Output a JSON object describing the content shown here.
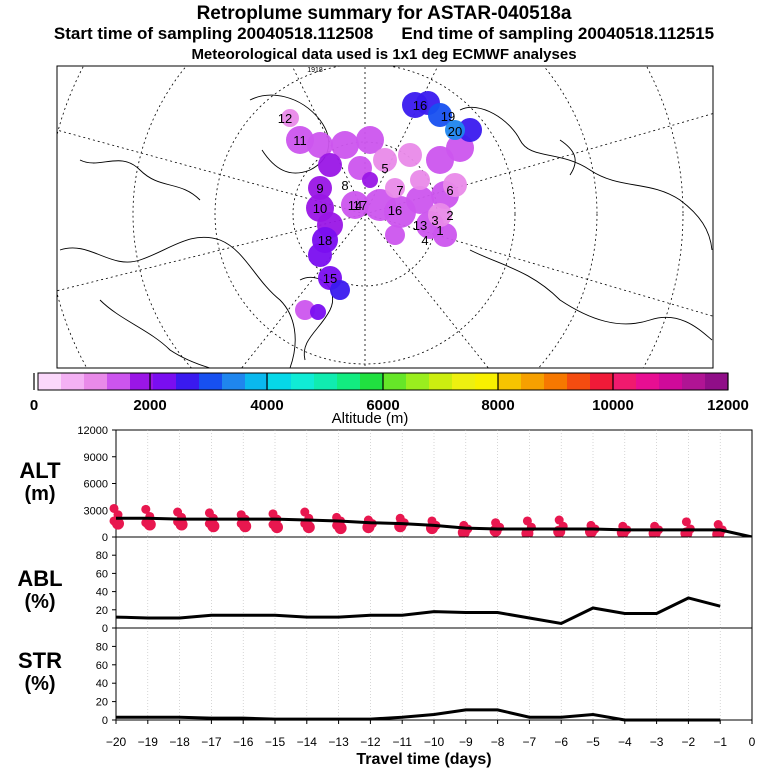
{
  "title": "Retroplume summary for ASTAR-040518a",
  "start_label": "Start time of sampling 20040518.112508",
  "end_label": "End time of sampling 20040518.112515",
  "met_label": "Meteorological data used is 1x1 deg ECMWF analyses",
  "colorbar": {
    "label": "Altitude (m)",
    "ticks": [
      "0",
      "2000",
      "4000",
      "6000",
      "8000",
      "10000",
      "12000"
    ],
    "colors": [
      "#fbd8fb",
      "#f4b1f4",
      "#e98ae9",
      "#cc55ee",
      "#9a16e6",
      "#7a0ef0",
      "#3a1aef",
      "#1750f0",
      "#1f86ee",
      "#0ab8ee",
      "#06d8e8",
      "#10ecd6",
      "#10ecb0",
      "#12ec80",
      "#20e040",
      "#66e628",
      "#9aee1e",
      "#ccee10",
      "#eef010",
      "#f8f000",
      "#f6c400",
      "#f6a000",
      "#f67800",
      "#f44c10",
      "#f01a38",
      "#f01a6e",
      "#e80e92",
      "#d00a9a",
      "#b01494",
      "#900e88"
    ]
  },
  "map": {
    "labels": [
      "1",
      "2",
      "3",
      "4",
      "5",
      "6",
      "7",
      "8",
      "9",
      "10",
      "11",
      "12",
      "13",
      "14",
      "15",
      "16",
      "17",
      "18",
      "19",
      "20"
    ],
    "corner_text": "1918"
  },
  "chart_data": [
    {
      "type": "line",
      "panel": "ALT",
      "title_line1": "ALT",
      "title_line2": "(m)",
      "ylabel": "ALT (m)",
      "ylim": [
        0,
        12000
      ],
      "yticks": [
        "12000",
        "9000",
        "6000",
        "3000",
        "0"
      ],
      "x": [
        -20,
        -19,
        -18,
        -17,
        -16,
        -15,
        -14,
        -13,
        -12,
        -11,
        -10,
        -9,
        -8,
        -7,
        -6,
        -5,
        -4,
        -3,
        -2,
        -1,
        0
      ],
      "values": [
        2100,
        2100,
        2000,
        2000,
        2000,
        2000,
        1900,
        1800,
        1600,
        1500,
        1300,
        1000,
        900,
        900,
        900,
        900,
        800,
        800,
        800,
        800,
        0
      ],
      "scatter_color": "#e8174f",
      "scatter": [
        [
          -20,
          [
            3200,
            2500,
            1800,
            1500
          ]
        ],
        [
          -19,
          [
            3100,
            2300,
            1600,
            1400
          ]
        ],
        [
          -18,
          [
            2800,
            2200,
            1700,
            1400
          ]
        ],
        [
          -17,
          [
            2700,
            2100,
            1500,
            1200
          ]
        ],
        [
          -16,
          [
            2500,
            2000,
            1500,
            1200
          ]
        ],
        [
          -15,
          [
            2600,
            2000,
            1400,
            1100
          ]
        ],
        [
          -14,
          [
            2800,
            2100,
            1500,
            1100
          ]
        ],
        [
          -13,
          [
            2200,
            1800,
            1300,
            1000
          ]
        ],
        [
          -12,
          [
            1900,
            1500,
            1100
          ]
        ],
        [
          -11,
          [
            2100,
            1600,
            1200
          ]
        ],
        [
          -10,
          [
            1800,
            1300,
            1000
          ]
        ],
        [
          -9,
          [
            1300,
            900,
            500
          ]
        ],
        [
          -8,
          [
            1600,
            1100,
            700
          ]
        ],
        [
          -7,
          [
            1800,
            1100,
            400
          ]
        ],
        [
          -6,
          [
            1900,
            1200,
            600
          ]
        ],
        [
          -5,
          [
            1300,
            900,
            600
          ]
        ],
        [
          -4,
          [
            1200,
            800,
            500
          ]
        ],
        [
          -3,
          [
            1200,
            800,
            400
          ]
        ],
        [
          -2,
          [
            1700,
            900,
            400
          ]
        ],
        [
          -1,
          [
            1400,
            800,
            300
          ]
        ]
      ]
    },
    {
      "type": "line",
      "panel": "ABL",
      "title_line1": "ABL",
      "title_line2": "(%)",
      "ylabel": "ABL (%)",
      "ylim": [
        0,
        100
      ],
      "yticks": [
        "80",
        "60",
        "40",
        "20",
        "0"
      ],
      "x": [
        -20,
        -19,
        -18,
        -17,
        -16,
        -15,
        -14,
        -13,
        -12,
        -11,
        -10,
        -9,
        -8,
        -7,
        -6,
        -5,
        -4,
        -3,
        -2,
        -1
      ],
      "values": [
        12,
        11,
        11,
        14,
        14,
        14,
        12,
        12,
        14,
        14,
        18,
        17,
        17,
        11,
        5,
        22,
        16,
        16,
        33,
        24
      ]
    },
    {
      "type": "line",
      "panel": "STR",
      "title_line1": "STR",
      "title_line2": "(%)",
      "ylabel": "STR (%)",
      "ylim": [
        0,
        100
      ],
      "yticks": [
        "80",
        "60",
        "40",
        "20",
        "0"
      ],
      "x": [
        -20,
        -19,
        -18,
        -17,
        -16,
        -15,
        -14,
        -13,
        -12,
        -11,
        -10,
        -9,
        -8,
        -7,
        -6,
        -5,
        -4,
        -3,
        -2,
        -1
      ],
      "values": [
        3,
        3,
        3,
        2,
        2,
        1,
        1,
        1,
        1,
        3,
        6,
        11,
        11,
        3,
        3,
        6,
        0,
        0,
        0,
        0
      ],
      "xlabel": "Travel time (days)",
      "xticks": [
        "−20",
        "−19",
        "−18",
        "−17",
        "−16",
        "−15",
        "−14",
        "−13",
        "−12",
        "−11",
        "−10",
        "−9",
        "−8",
        "−7",
        "−6",
        "−5",
        "−4",
        "−3",
        "−2",
        "−1",
        "0"
      ]
    }
  ]
}
